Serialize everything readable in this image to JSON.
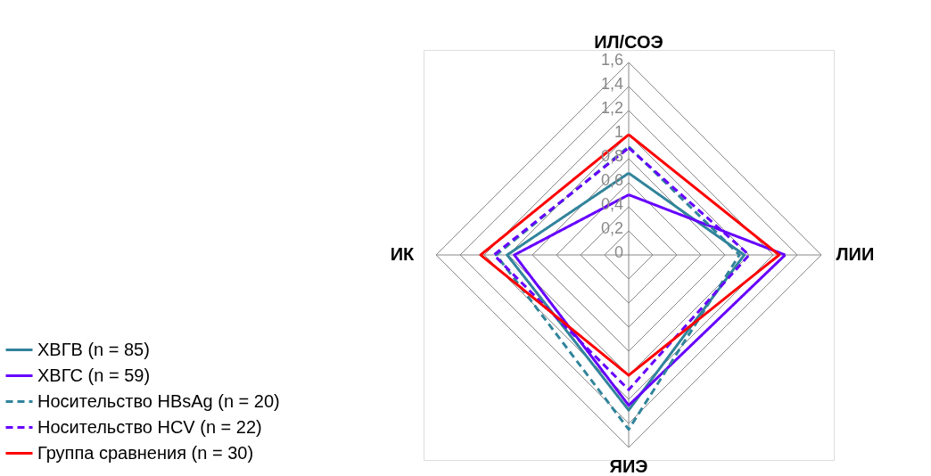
{
  "chart_data": {
    "type": "radar",
    "categories": [
      "ИЛ/СОЭ",
      "ЛИИ",
      "ЯИЭ",
      "ИК"
    ],
    "series": [
      {
        "name": "ХВГВ (n = 85)",
        "color": "#31849b",
        "line_style": "solid",
        "values": [
          0.68,
          0.96,
          1.29,
          1.01
        ]
      },
      {
        "name": "ХВГС (n = 59)",
        "color": "#6600ff",
        "line_style": "solid",
        "values": [
          0.5,
          1.3,
          1.25,
          0.95
        ]
      },
      {
        "name": "Носительство HBsAg (n = 20)",
        "color": "#31849b",
        "line_style": "dashed",
        "values": [
          0.9,
          0.92,
          1.45,
          1.1
        ]
      },
      {
        "name": "Носительство HCV (n = 22)",
        "color": "#6600ff",
        "line_style": "dashed",
        "values": [
          0.89,
          1.0,
          1.12,
          1.12
        ]
      },
      {
        "name": "Группа сравнения (n = 30)",
        "color": "#ff0000",
        "line_style": "solid",
        "values": [
          1.0,
          1.25,
          1.0,
          1.23
        ]
      }
    ],
    "ylim": [
      0,
      1.6
    ],
    "yticks": [
      {
        "value": 0,
        "label": "0"
      },
      {
        "value": 0.2,
        "label": "0,2"
      },
      {
        "value": 0.4,
        "label": "0,4"
      },
      {
        "value": 0.6,
        "label": "0,6"
      },
      {
        "value": 0.8,
        "label": "0,8"
      },
      {
        "value": 1,
        "label": "1"
      },
      {
        "value": 1.2,
        "label": "1,2"
      },
      {
        "value": 1.4,
        "label": "1,4"
      },
      {
        "value": 1.6,
        "label": "1,6"
      }
    ],
    "grid": true,
    "legend": "bottom left"
  }
}
